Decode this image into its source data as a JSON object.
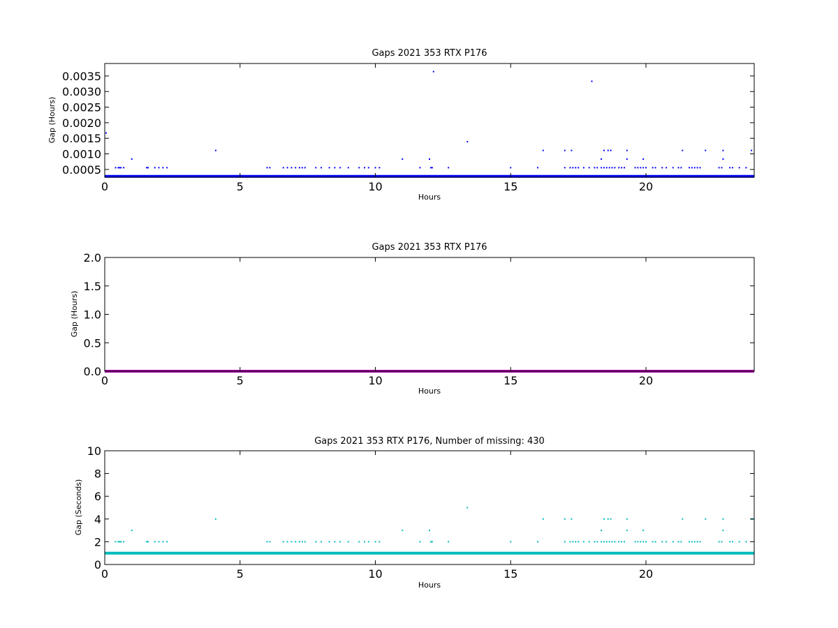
{
  "figure": {
    "background": "#ffffff"
  },
  "chart_data": [
    {
      "type": "scatter",
      "title": "Gaps 2021 353 RTX  P176",
      "xlabel": "Hours",
      "ylabel": "Gap (Hours)",
      "xlim": [
        0,
        24
      ],
      "ylim": [
        0.00025,
        0.0039
      ],
      "xticks": [
        0,
        5,
        10,
        15,
        20
      ],
      "xtick_labels": [
        "0",
        "5",
        "10",
        "15",
        "20"
      ],
      "yticks": [
        0.0005,
        0.001,
        0.0015,
        0.002,
        0.0025,
        0.003,
        0.0035
      ],
      "ytick_labels": [
        "0.0005",
        "0.0010",
        "0.0015",
        "0.0020",
        "0.0025",
        "0.0030",
        "0.0035"
      ],
      "grid": false,
      "series": [
        {
          "color": "#0000ff",
          "baseline": {
            "y": 0.000278,
            "x_range": [
              0,
              24
            ]
          },
          "points": [
            [
              0.05,
              0.00167
            ],
            [
              0.4,
              0.000556
            ],
            [
              0.5,
              0.000556
            ],
            [
              0.55,
              0.000556
            ],
            [
              0.6,
              0.000556
            ],
            [
              0.7,
              0.000556
            ],
            [
              1.0,
              0.000833
            ],
            [
              1.55,
              0.000556
            ],
            [
              1.6,
              0.000556
            ],
            [
              1.85,
              0.000556
            ],
            [
              2.0,
              0.000556
            ],
            [
              2.15,
              0.000556
            ],
            [
              2.3,
              0.000556
            ],
            [
              4.1,
              0.00111
            ],
            [
              6.0,
              0.000556
            ],
            [
              6.1,
              0.000556
            ],
            [
              6.6,
              0.000556
            ],
            [
              6.75,
              0.000556
            ],
            [
              6.9,
              0.000556
            ],
            [
              7.05,
              0.000556
            ],
            [
              7.2,
              0.000556
            ],
            [
              7.3,
              0.000556
            ],
            [
              7.4,
              0.000556
            ],
            [
              7.8,
              0.000556
            ],
            [
              8.0,
              0.000556
            ],
            [
              8.3,
              0.000556
            ],
            [
              8.5,
              0.000556
            ],
            [
              8.7,
              0.000556
            ],
            [
              9.0,
              0.000556
            ],
            [
              9.4,
              0.000556
            ],
            [
              9.6,
              0.000556
            ],
            [
              9.75,
              0.000556
            ],
            [
              10.0,
              0.000556
            ],
            [
              10.15,
              0.000556
            ],
            [
              11.0,
              0.000833
            ],
            [
              11.65,
              0.000556
            ],
            [
              12.0,
              0.000833
            ],
            [
              12.05,
              0.000556
            ],
            [
              12.1,
              0.000556
            ],
            [
              12.15,
              0.00364
            ],
            [
              12.7,
              0.000556
            ],
            [
              13.4,
              0.00139
            ],
            [
              15.0,
              0.000556
            ],
            [
              16.0,
              0.000556
            ],
            [
              16.2,
              0.00111
            ],
            [
              17.0,
              0.000556
            ],
            [
              17.0,
              0.00111
            ],
            [
              17.2,
              0.000556
            ],
            [
              17.25,
              0.00111
            ],
            [
              17.3,
              0.000556
            ],
            [
              17.4,
              0.000556
            ],
            [
              17.5,
              0.000556
            ],
            [
              17.7,
              0.000556
            ],
            [
              17.9,
              0.000556
            ],
            [
              18.0,
              0.00333
            ],
            [
              18.1,
              0.000556
            ],
            [
              18.2,
              0.000556
            ],
            [
              18.35,
              0.000556
            ],
            [
              18.35,
              0.000833
            ],
            [
              18.45,
              0.000556
            ],
            [
              18.45,
              0.00111
            ],
            [
              18.55,
              0.000556
            ],
            [
              18.6,
              0.00111
            ],
            [
              18.65,
              0.000556
            ],
            [
              18.7,
              0.00111
            ],
            [
              18.75,
              0.000556
            ],
            [
              18.85,
              0.000556
            ],
            [
              19.0,
              0.000556
            ],
            [
              19.1,
              0.000556
            ],
            [
              19.2,
              0.000556
            ],
            [
              19.3,
              0.000833
            ],
            [
              19.3,
              0.00111
            ],
            [
              19.6,
              0.000556
            ],
            [
              19.7,
              0.000556
            ],
            [
              19.8,
              0.000556
            ],
            [
              19.9,
              0.000833
            ],
            [
              19.9,
              0.000556
            ],
            [
              20.0,
              0.000556
            ],
            [
              20.25,
              0.000556
            ],
            [
              20.35,
              0.000556
            ],
            [
              20.6,
              0.000556
            ],
            [
              20.75,
              0.000556
            ],
            [
              21.0,
              0.000556
            ],
            [
              21.2,
              0.000556
            ],
            [
              21.3,
              0.000556
            ],
            [
              21.35,
              0.00111
            ],
            [
              21.6,
              0.000556
            ],
            [
              21.7,
              0.000556
            ],
            [
              21.8,
              0.000556
            ],
            [
              21.9,
              0.000556
            ],
            [
              22.0,
              0.000556
            ],
            [
              22.2,
              0.00111
            ],
            [
              22.7,
              0.000556
            ],
            [
              22.8,
              0.000556
            ],
            [
              22.85,
              0.00111
            ],
            [
              22.85,
              0.000833
            ],
            [
              23.1,
              0.000556
            ],
            [
              23.2,
              0.000556
            ],
            [
              23.45,
              0.000556
            ],
            [
              23.7,
              0.000556
            ],
            [
              23.9,
              0.00111
            ]
          ]
        }
      ]
    },
    {
      "type": "scatter",
      "title": "Gaps 2021 353 RTX  P176",
      "xlabel": "Hours",
      "ylabel": "Gap (Hours)",
      "xlim": [
        0,
        24
      ],
      "ylim": [
        0,
        2.0
      ],
      "xticks": [
        0,
        5,
        10,
        15,
        20
      ],
      "xtick_labels": [
        "0",
        "5",
        "10",
        "15",
        "20"
      ],
      "yticks": [
        0,
        0.5,
        1.0,
        1.5,
        2.0
      ],
      "ytick_labels": [
        "0.0",
        "0.5",
        "1.0",
        "1.5",
        "2.0"
      ],
      "grid": false,
      "series": [
        {
          "color": "#aa00aa",
          "baseline": {
            "y": 0.0,
            "x_range": [
              0,
              24
            ]
          },
          "points": []
        }
      ]
    },
    {
      "type": "scatter",
      "title": "Gaps 2021 353 RTX  P176, Number of missing: 430",
      "xlabel": "Hours",
      "ylabel": "Gap (Seconds)",
      "xlim": [
        0,
        24
      ],
      "ylim": [
        0,
        10
      ],
      "xticks": [
        0,
        5,
        10,
        15,
        20
      ],
      "xtick_labels": [
        "0",
        "5",
        "10",
        "15",
        "20"
      ],
      "yticks": [
        0,
        2,
        4,
        6,
        8,
        10
      ],
      "ytick_labels": [
        "0",
        "2",
        "4",
        "6",
        "8",
        "10"
      ],
      "grid": false,
      "series": [
        {
          "color": "#00bbbb",
          "baseline": {
            "y": 1,
            "x_range": [
              0,
              24
            ]
          },
          "points": [
            [
              0.4,
              2
            ],
            [
              0.5,
              2
            ],
            [
              0.55,
              2
            ],
            [
              0.6,
              2
            ],
            [
              0.7,
              2
            ],
            [
              1.0,
              3
            ],
            [
              1.55,
              2
            ],
            [
              1.6,
              2
            ],
            [
              1.85,
              2
            ],
            [
              2.0,
              2
            ],
            [
              2.15,
              2
            ],
            [
              2.3,
              2
            ],
            [
              4.1,
              4
            ],
            [
              6.0,
              2
            ],
            [
              6.1,
              2
            ],
            [
              6.6,
              2
            ],
            [
              6.75,
              2
            ],
            [
              6.9,
              2
            ],
            [
              7.05,
              2
            ],
            [
              7.2,
              2
            ],
            [
              7.3,
              2
            ],
            [
              7.4,
              2
            ],
            [
              7.8,
              2
            ],
            [
              8.0,
              2
            ],
            [
              8.3,
              2
            ],
            [
              8.5,
              2
            ],
            [
              8.7,
              2
            ],
            [
              9.0,
              2
            ],
            [
              9.4,
              2
            ],
            [
              9.6,
              2
            ],
            [
              9.75,
              2
            ],
            [
              10.0,
              2
            ],
            [
              10.15,
              2
            ],
            [
              11.0,
              3
            ],
            [
              11.65,
              2
            ],
            [
              12.0,
              3
            ],
            [
              12.05,
              2
            ],
            [
              12.1,
              2
            ],
            [
              12.7,
              2
            ],
            [
              13.4,
              5
            ],
            [
              15.0,
              2
            ],
            [
              16.0,
              2
            ],
            [
              16.2,
              4
            ],
            [
              17.0,
              2
            ],
            [
              17.0,
              4
            ],
            [
              17.2,
              2
            ],
            [
              17.25,
              4
            ],
            [
              17.3,
              2
            ],
            [
              17.4,
              2
            ],
            [
              17.5,
              2
            ],
            [
              17.7,
              2
            ],
            [
              17.9,
              2
            ],
            [
              18.1,
              2
            ],
            [
              18.2,
              2
            ],
            [
              18.35,
              2
            ],
            [
              18.35,
              3
            ],
            [
              18.45,
              2
            ],
            [
              18.45,
              4
            ],
            [
              18.55,
              2
            ],
            [
              18.6,
              4
            ],
            [
              18.65,
              2
            ],
            [
              18.7,
              4
            ],
            [
              18.75,
              2
            ],
            [
              18.85,
              2
            ],
            [
              19.0,
              2
            ],
            [
              19.1,
              2
            ],
            [
              19.2,
              2
            ],
            [
              19.3,
              3
            ],
            [
              19.3,
              4
            ],
            [
              19.6,
              2
            ],
            [
              19.7,
              2
            ],
            [
              19.8,
              2
            ],
            [
              19.9,
              3
            ],
            [
              19.9,
              2
            ],
            [
              20.0,
              2
            ],
            [
              20.25,
              2
            ],
            [
              20.35,
              2
            ],
            [
              20.6,
              2
            ],
            [
              20.75,
              2
            ],
            [
              21.0,
              2
            ],
            [
              21.2,
              2
            ],
            [
              21.3,
              2
            ],
            [
              21.35,
              4
            ],
            [
              21.6,
              2
            ],
            [
              21.7,
              2
            ],
            [
              21.8,
              2
            ],
            [
              21.9,
              2
            ],
            [
              22.0,
              2
            ],
            [
              22.2,
              4
            ],
            [
              22.7,
              2
            ],
            [
              22.8,
              2
            ],
            [
              22.85,
              4
            ],
            [
              22.85,
              3
            ],
            [
              23.1,
              2
            ],
            [
              23.2,
              2
            ],
            [
              23.45,
              2
            ],
            [
              23.7,
              2
            ],
            [
              23.9,
              4
            ],
            [
              23.95,
              4
            ]
          ]
        }
      ]
    }
  ]
}
